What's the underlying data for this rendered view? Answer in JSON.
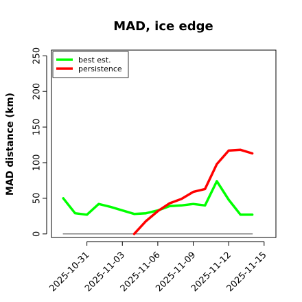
{
  "chart_data": {
    "type": "line",
    "title": "MAD, ice edge",
    "xlabel": "",
    "ylabel": "MAD distance (km)",
    "x": [
      "2025-10-29",
      "2025-10-30",
      "2025-10-31",
      "2025-11-01",
      "2025-11-02",
      "2025-11-03",
      "2025-11-04",
      "2025-11-05",
      "2025-11-06",
      "2025-11-07",
      "2025-11-08",
      "2025-11-09",
      "2025-11-10",
      "2025-11-11",
      "2025-11-12",
      "2025-11-13",
      "2025-11-14",
      "2025-11-15"
    ],
    "xlim": [
      "2025-10-28",
      "2025-11-16"
    ],
    "xticks": [
      "2025-10-31",
      "2025-11-03",
      "2025-11-06",
      "2025-11-09",
      "2025-11-12",
      "2025-11-15"
    ],
    "ylim": [
      -5,
      258
    ],
    "yticks": [
      0,
      50,
      100,
      150,
      200,
      250
    ],
    "grid": false,
    "legend_position": "top-left",
    "series": [
      {
        "name": "best est.",
        "color": "#00ff00",
        "values": [
          50,
          29,
          27,
          42,
          38,
          33,
          28,
          29,
          33,
          39,
          40,
          42,
          40,
          74,
          48,
          27,
          27,
          null
        ]
      },
      {
        "name": "persistence",
        "color": "#ff0000",
        "values": [
          null,
          null,
          null,
          null,
          null,
          null,
          0,
          18,
          32,
          43,
          49,
          59,
          63,
          98,
          117,
          118,
          113,
          null
        ]
      },
      {
        "name": "",
        "color": "#808080",
        "values": [
          0,
          0,
          0,
          0,
          0,
          0,
          0,
          0,
          0,
          0,
          0,
          0,
          0,
          0,
          0,
          0,
          0,
          null
        ]
      }
    ]
  }
}
